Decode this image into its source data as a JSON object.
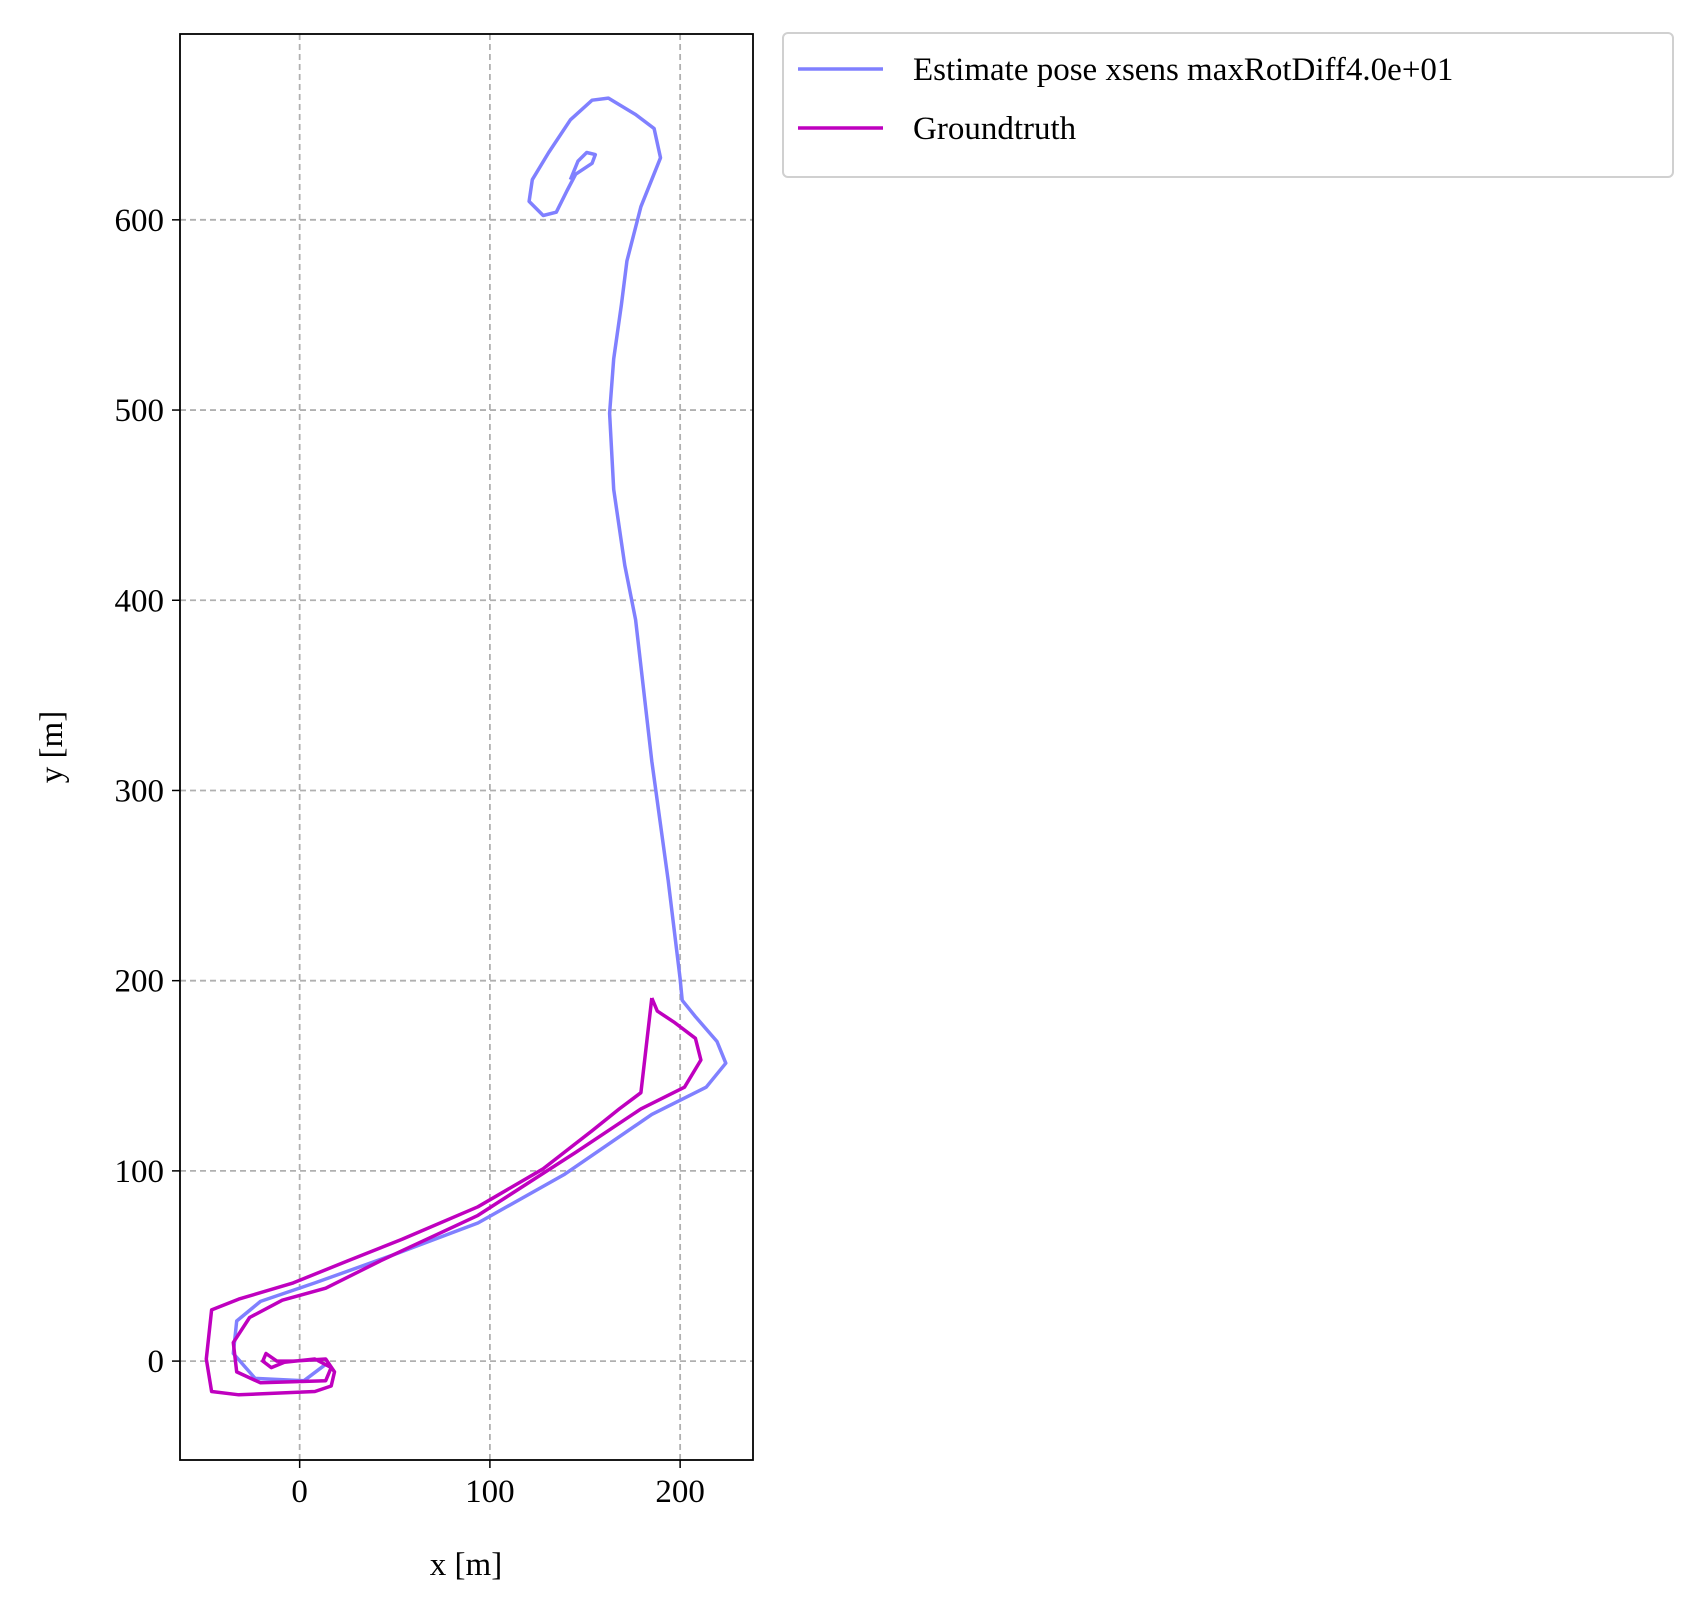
{
  "chart_data": {
    "type": "line",
    "xlabel": "x [m]",
    "ylabel": "y [m]",
    "xlim": [
      -62.9,
      238.3
    ],
    "ylim": [
      -52,
      697.7
    ],
    "xticks": [
      0,
      100,
      200
    ],
    "yticks": [
      0,
      100,
      200,
      300,
      400,
      500,
      600
    ],
    "grid": true,
    "legend": "outside-upper-right",
    "series": [
      {
        "name": "Estimate pose xsens maxRotDiff4.0e+01",
        "color": "#8080ff",
        "x": [
          13.7,
          2.3,
          -23.4,
          -34.9,
          -33.1,
          -20.6,
          8,
          48,
          93.7,
          139.4,
          185.1,
          213.7,
          224,
          219.4,
          208,
          201.1,
          200,
          193.7,
          185.1,
          176.6,
          170.9,
          165.1,
          162.9,
          165.1,
          169.1,
          172,
          179.4,
          189.7,
          186.3,
          176.6,
          162.3,
          153.7,
          142.3,
          130.9,
          122.3,
          120.6,
          128,
          134.9,
          140.6,
          145.1,
          153.7,
          155.4,
          150.9,
          146.3,
          142.3
        ],
        "values": [
          -1.7,
          -10.3,
          -9.1,
          4,
          21.1,
          31.4,
          41.1,
          55.4,
          72.6,
          98.3,
          129.7,
          144,
          156.6,
          168,
          181.1,
          189.7,
          201.1,
          252.6,
          315.4,
          389.7,
          418.3,
          458.3,
          498.3,
          526.9,
          555.4,
          578.3,
          606.9,
          632.6,
          648,
          655.4,
          664,
          662.9,
          652.6,
          635.4,
          621.1,
          609.7,
          602.3,
          604,
          615.4,
          624,
          629.7,
          634.3,
          635.4,
          630.9,
          621.1
        ]
      },
      {
        "name": "Groundtruth",
        "color": "#bf00bf",
        "x": [
          185.1,
          179.4,
          168,
          153.7,
          128,
          93.7,
          53.7,
          25.1,
          -3.4,
          -32,
          -46.3,
          -49.1,
          -46.3,
          -32,
          8,
          16.6,
          18.3,
          13.7,
          -3.4,
          -12,
          -17.7,
          -19.4,
          -14.9,
          -8,
          8,
          16.6,
          13.7,
          -20.6,
          -33.1,
          -34.9,
          -26.3,
          -9.1,
          13.7,
          42.3,
          93.7,
          145.1,
          179.4,
          202.3,
          210.9,
          208,
          196.6,
          188,
          185.1
        ],
        "values": [
          190.9,
          141.1,
          132.6,
          121.1,
          101.1,
          81.1,
          64,
          52.6,
          41.1,
          32.6,
          26.9,
          1.1,
          -16,
          -17.7,
          -16,
          -13.1,
          -5.7,
          1.1,
          0,
          0,
          4,
          0,
          -3.4,
          -0.6,
          1.1,
          -3.4,
          -10.3,
          -11.4,
          -5.7,
          9.7,
          22.9,
          32,
          38.3,
          52.6,
          76.6,
          109.7,
          132.6,
          144,
          158.3,
          169.7,
          178.3,
          184,
          190.9
        ]
      }
    ]
  }
}
